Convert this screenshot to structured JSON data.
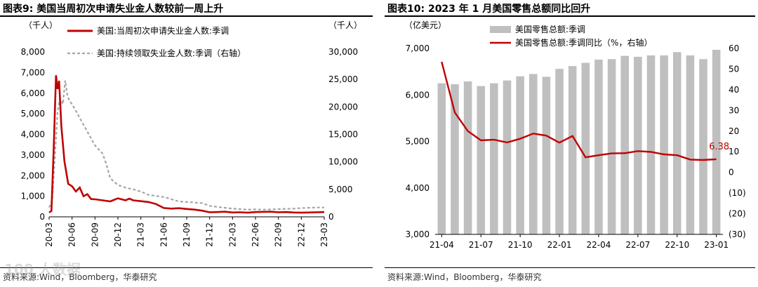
{
  "colors": {
    "red": "#C00000",
    "gray": "#A6A6A6",
    "bar": "#BFBFBF",
    "axis": "#000000"
  },
  "watermark": "100 人数据",
  "chart_data": [
    {
      "type": "line",
      "title": "图表9:  美国当周初次申请失业金人数较前一周上升",
      "source": "资料来源:Wind，Bloomberg，华泰研究",
      "left_unit": "（千人）",
      "right_unit": "（千人）",
      "ylim": [
        0,
        8000
      ],
      "y2lim": [
        0,
        30000
      ],
      "yticks": [
        "0",
        "1,000",
        "2,000",
        "3,000",
        "4,000",
        "5,000",
        "6,000",
        "7,000",
        "8,000"
      ],
      "y2ticks": [
        "0",
        "5,000",
        "10,000",
        "15,000",
        "20,000",
        "25,000",
        "30,000"
      ],
      "yticks_values": [
        0,
        1000,
        2000,
        3000,
        4000,
        5000,
        6000,
        7000,
        8000
      ],
      "y2ticks_values": [
        0,
        5000,
        10000,
        15000,
        20000,
        25000,
        30000
      ],
      "xticks": [
        "20-03",
        "20-06",
        "20-09",
        "20-12",
        "21-03",
        "21-06",
        "21-09",
        "21-12",
        "22-03",
        "22-06",
        "22-09",
        "22-12",
        "23-03"
      ],
      "x_range": [
        0,
        36
      ],
      "series": [
        {
          "name": "美国:当周初次申请失业金人数:季调",
          "axis": "left",
          "x": [
            0,
            0.3,
            0.6,
            0.9,
            1.1,
            1.3,
            1.6,
            2.0,
            2.5,
            3.0,
            3.5,
            4.0,
            4.5,
            5.0,
            5.5,
            6.0,
            7.0,
            8.0,
            9.0,
            10.0,
            10.5,
            11.0,
            12.0,
            13.0,
            14.0,
            15.0,
            16.0,
            17.0,
            18.0,
            19.0,
            20.0,
            21.0,
            22.0,
            23.0,
            24.0,
            25.0,
            26.0,
            27.0,
            28.0,
            29.0,
            30.0,
            31.0,
            32.0,
            33.0,
            34.0,
            35.0,
            36.0
          ],
          "y": [
            211,
            282,
            3300,
            6867,
            6200,
            6600,
            4400,
            2700,
            1600,
            1480,
            1230,
            1420,
            1000,
            1100,
            860,
            850,
            800,
            750,
            900,
            800,
            880,
            800,
            760,
            720,
            620,
            430,
            400,
            420,
            380,
            350,
            300,
            220,
            230,
            250,
            210,
            220,
            200,
            230,
            240,
            250,
            220,
            230,
            210,
            200,
            210,
            220,
            230
          ]
        },
        {
          "name": "美国:持续领取失业金人数:季调（右轴）",
          "axis": "right",
          "x": [
            0,
            0.4,
            0.8,
            1.1,
            1.4,
            1.8,
            2.1,
            2.4,
            2.7,
            3.0,
            4.0,
            5.0,
            6.0,
            7.0,
            7.5,
            8.0,
            9.0,
            10.0,
            11.0,
            12.0,
            13.0,
            14.0,
            15.0,
            16.0,
            17.0,
            18.0,
            19.0,
            20.0,
            21.0,
            22.0,
            23.0,
            24.0,
            25.0,
            26.0,
            27.0,
            28.0,
            29.0,
            30.0,
            31.0,
            32.0,
            33.0,
            34.0,
            35.0,
            36.0
          ],
          "y": [
            1700,
            3000,
            12000,
            19000,
            21500,
            20500,
            24800,
            22000,
            21000,
            20500,
            18000,
            15500,
            13000,
            11500,
            9500,
            7000,
            5800,
            5300,
            5000,
            4600,
            4000,
            3800,
            3600,
            3200,
            2800,
            2700,
            2600,
            2500,
            2000,
            1800,
            1650,
            1500,
            1400,
            1300,
            1350,
            1300,
            1350,
            1400,
            1450,
            1500,
            1600,
            1650,
            1700,
            1700
          ]
        }
      ]
    },
    {
      "type": "bar+line",
      "title": "图表10:  2023 年 1 月美国零售总额同比回升",
      "source": "资料来源:Wind，Bloomberg，华泰研究",
      "left_unit": "（亿美元）",
      "ylim": [
        3000,
        7000
      ],
      "y2lim": [
        -30,
        60
      ],
      "yticks": [
        "3,000",
        "4,000",
        "5,000",
        "6,000",
        "7,000"
      ],
      "yticks_values": [
        3000,
        4000,
        5000,
        6000,
        7000
      ],
      "y2ticks": [
        "(30)",
        "(20)",
        "(10)",
        "0",
        "10",
        "20",
        "30",
        "40",
        "50",
        "60"
      ],
      "y2ticks_values": [
        -30,
        -20,
        -10,
        0,
        10,
        20,
        30,
        40,
        50,
        60
      ],
      "xticks": [
        "21-04",
        "21-07",
        "21-10",
        "22-01",
        "22-04",
        "22-07",
        "22-10",
        "23-01"
      ],
      "categories": [
        "21-04",
        "21-05",
        "21-06",
        "21-07",
        "21-08",
        "21-09",
        "21-10",
        "21-11",
        "21-12",
        "22-01",
        "22-02",
        "22-03",
        "22-04",
        "22-05",
        "22-06",
        "22-07",
        "22-08",
        "22-09",
        "22-10",
        "22-11",
        "22-12",
        "23-01"
      ],
      "bar_series": {
        "name": "美国零售总额:季调",
        "values": [
          6250,
          6230,
          6290,
          6190,
          6250,
          6310,
          6400,
          6450,
          6390,
          6560,
          6620,
          6690,
          6760,
          6770,
          6840,
          6820,
          6850,
          6850,
          6920,
          6850,
          6770,
          6970
        ]
      },
      "line_series": {
        "name": "美国零售总额:季调同比（%，右轴）",
        "values": [
          53.5,
          29,
          20,
          15.5,
          15.8,
          14.5,
          16.3,
          18.8,
          17.8,
          14.4,
          17.6,
          7.3,
          8.3,
          9.2,
          9.3,
          10.3,
          9.9,
          8.7,
          8.3,
          6.2,
          6.0,
          6.38
        ]
      },
      "annotation": "6.38"
    }
  ]
}
